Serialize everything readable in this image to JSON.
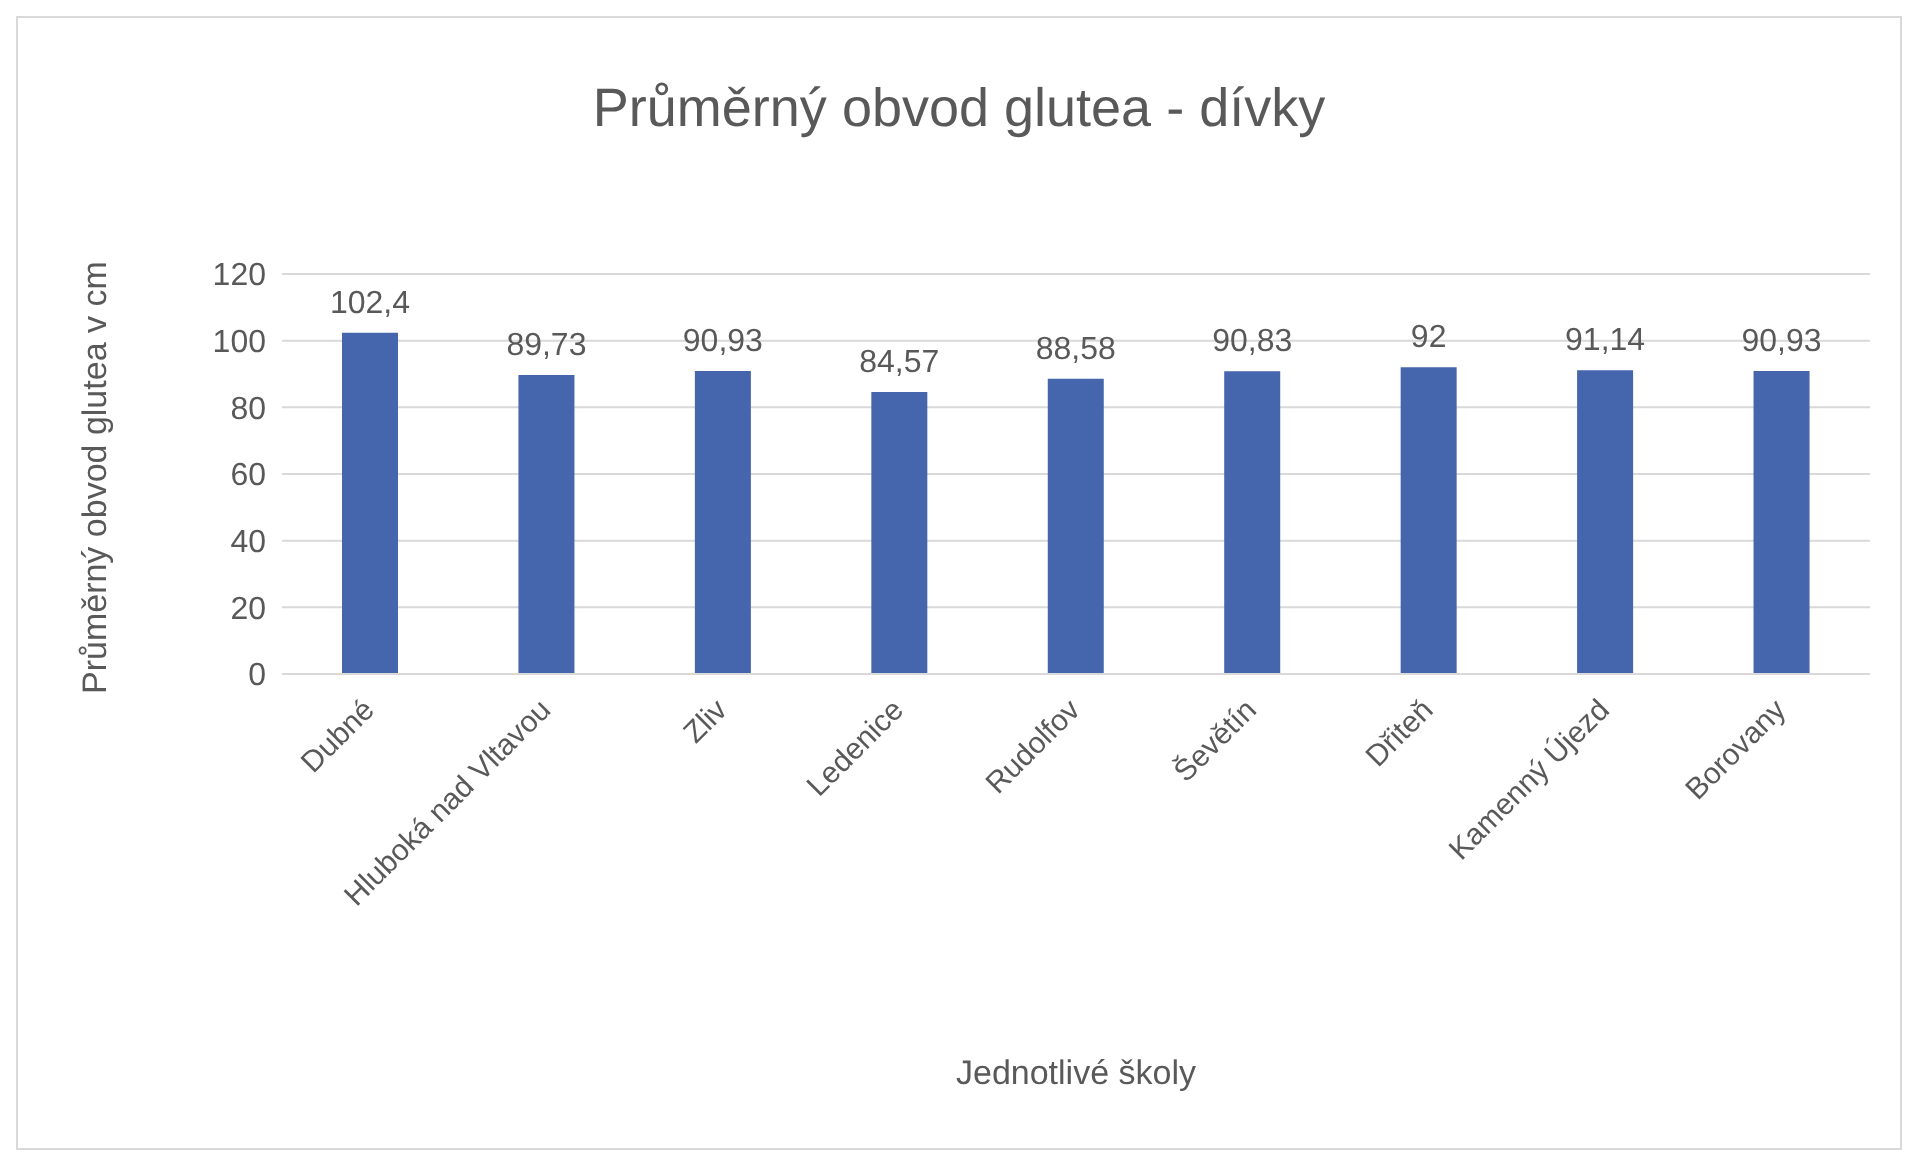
{
  "chart_data": {
    "type": "bar",
    "title": "Průměrný obvod glutea - dívky",
    "xlabel": "Jednotlivé školy",
    "ylabel": "Průměrný obvod glutea v cm",
    "categories": [
      "Dubné",
      "Hluboká nad Vltavou",
      "Zliv",
      "Ledenice",
      "Rudolfov",
      "Ševětín",
      "Dřiteň",
      "Kamenný Újezd",
      "Borovany"
    ],
    "values": [
      102.4,
      89.73,
      90.93,
      84.57,
      88.58,
      90.83,
      92,
      91.14,
      90.93
    ],
    "value_labels": [
      "102,4",
      "89,73",
      "90,93",
      "84,57",
      "88,58",
      "90,83",
      "92",
      "91,14",
      "90,93"
    ],
    "color": "#4565ad",
    "ylim": [
      0,
      120
    ],
    "yticks": [
      0,
      20,
      40,
      60,
      80,
      100,
      120
    ],
    "grid": "y"
  }
}
